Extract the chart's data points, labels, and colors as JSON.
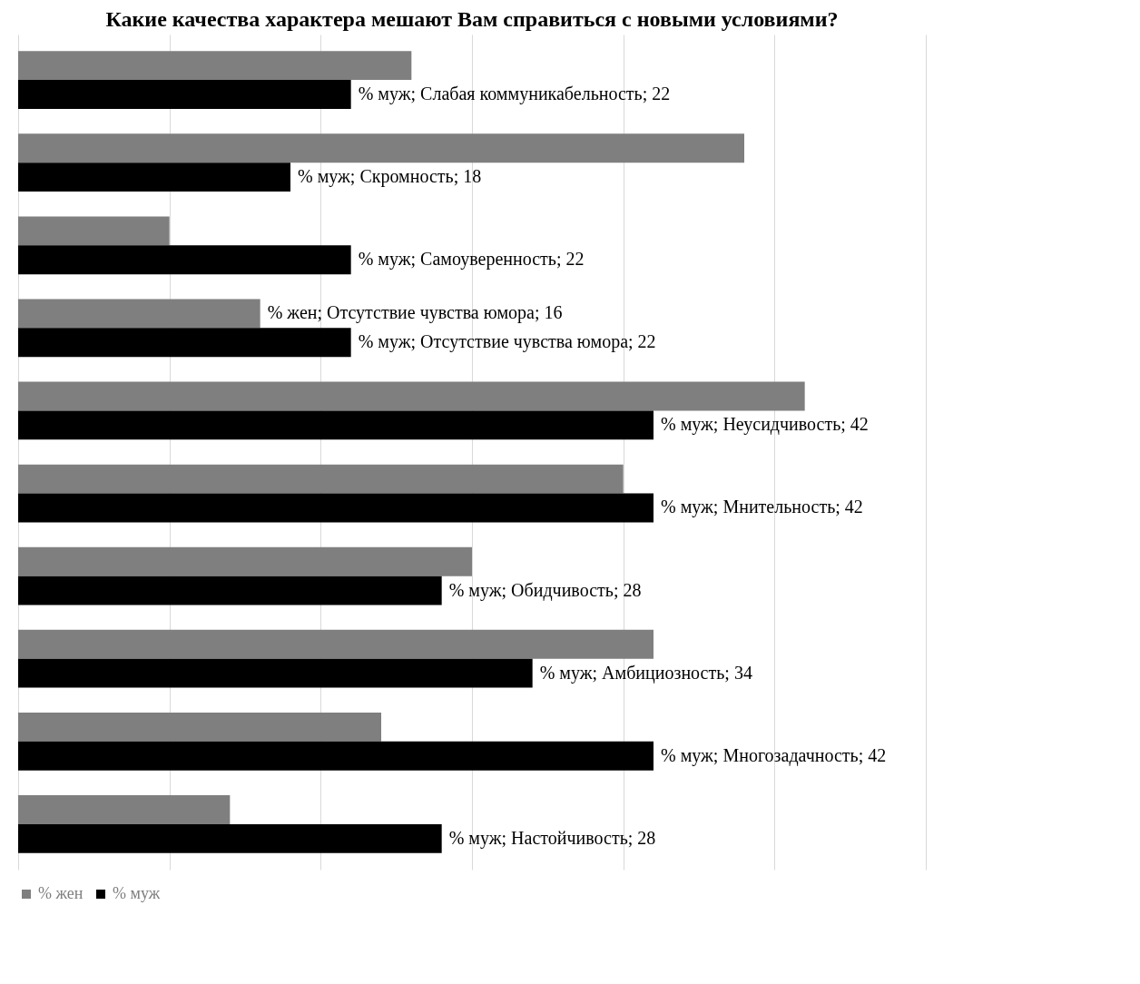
{
  "chart_data": {
    "type": "bar",
    "orientation": "horizontal",
    "title": "Какие качества характера мешают Вам справиться с новыми условиями?",
    "categories": [
      null,
      null,
      null,
      null,
      null,
      null,
      null,
      null,
      null,
      null
    ],
    "series": [
      {
        "name": "% жен",
        "color": "#7f7f7f",
        "values": [
          26,
          48,
          10,
          16,
          52,
          40,
          30,
          42,
          24,
          14
        ],
        "value_labels": [
          null,
          null,
          null,
          "% жен; Отсутствие чувства юмора; 16",
          null,
          null,
          null,
          null,
          null,
          null
        ]
      },
      {
        "name": "% муж",
        "color": "#000000",
        "values": [
          22,
          18,
          22,
          22,
          42,
          42,
          28,
          34,
          42,
          28
        ],
        "value_labels": [
          "% муж; Слабая коммуникабельность; 22",
          "% муж; Скромность; 18",
          "% муж; Самоуверенность; 22",
          "% муж; Отсутствие чувства юмора; 22",
          "% муж; Неусидчивость; 42",
          "% муж; Мнительность; 42",
          "% муж; Обидчивость; 28",
          "% муж; Амбициозность; 34",
          "% муж; Многозадачность; 42",
          "% муж; Настойчивость; 28"
        ]
      }
    ],
    "xlim": [
      0,
      60
    ],
    "xticks": [
      0,
      10,
      20,
      30,
      40,
      50,
      60
    ],
    "grid": "x",
    "tick_labels": false,
    "legend": "bottom"
  }
}
